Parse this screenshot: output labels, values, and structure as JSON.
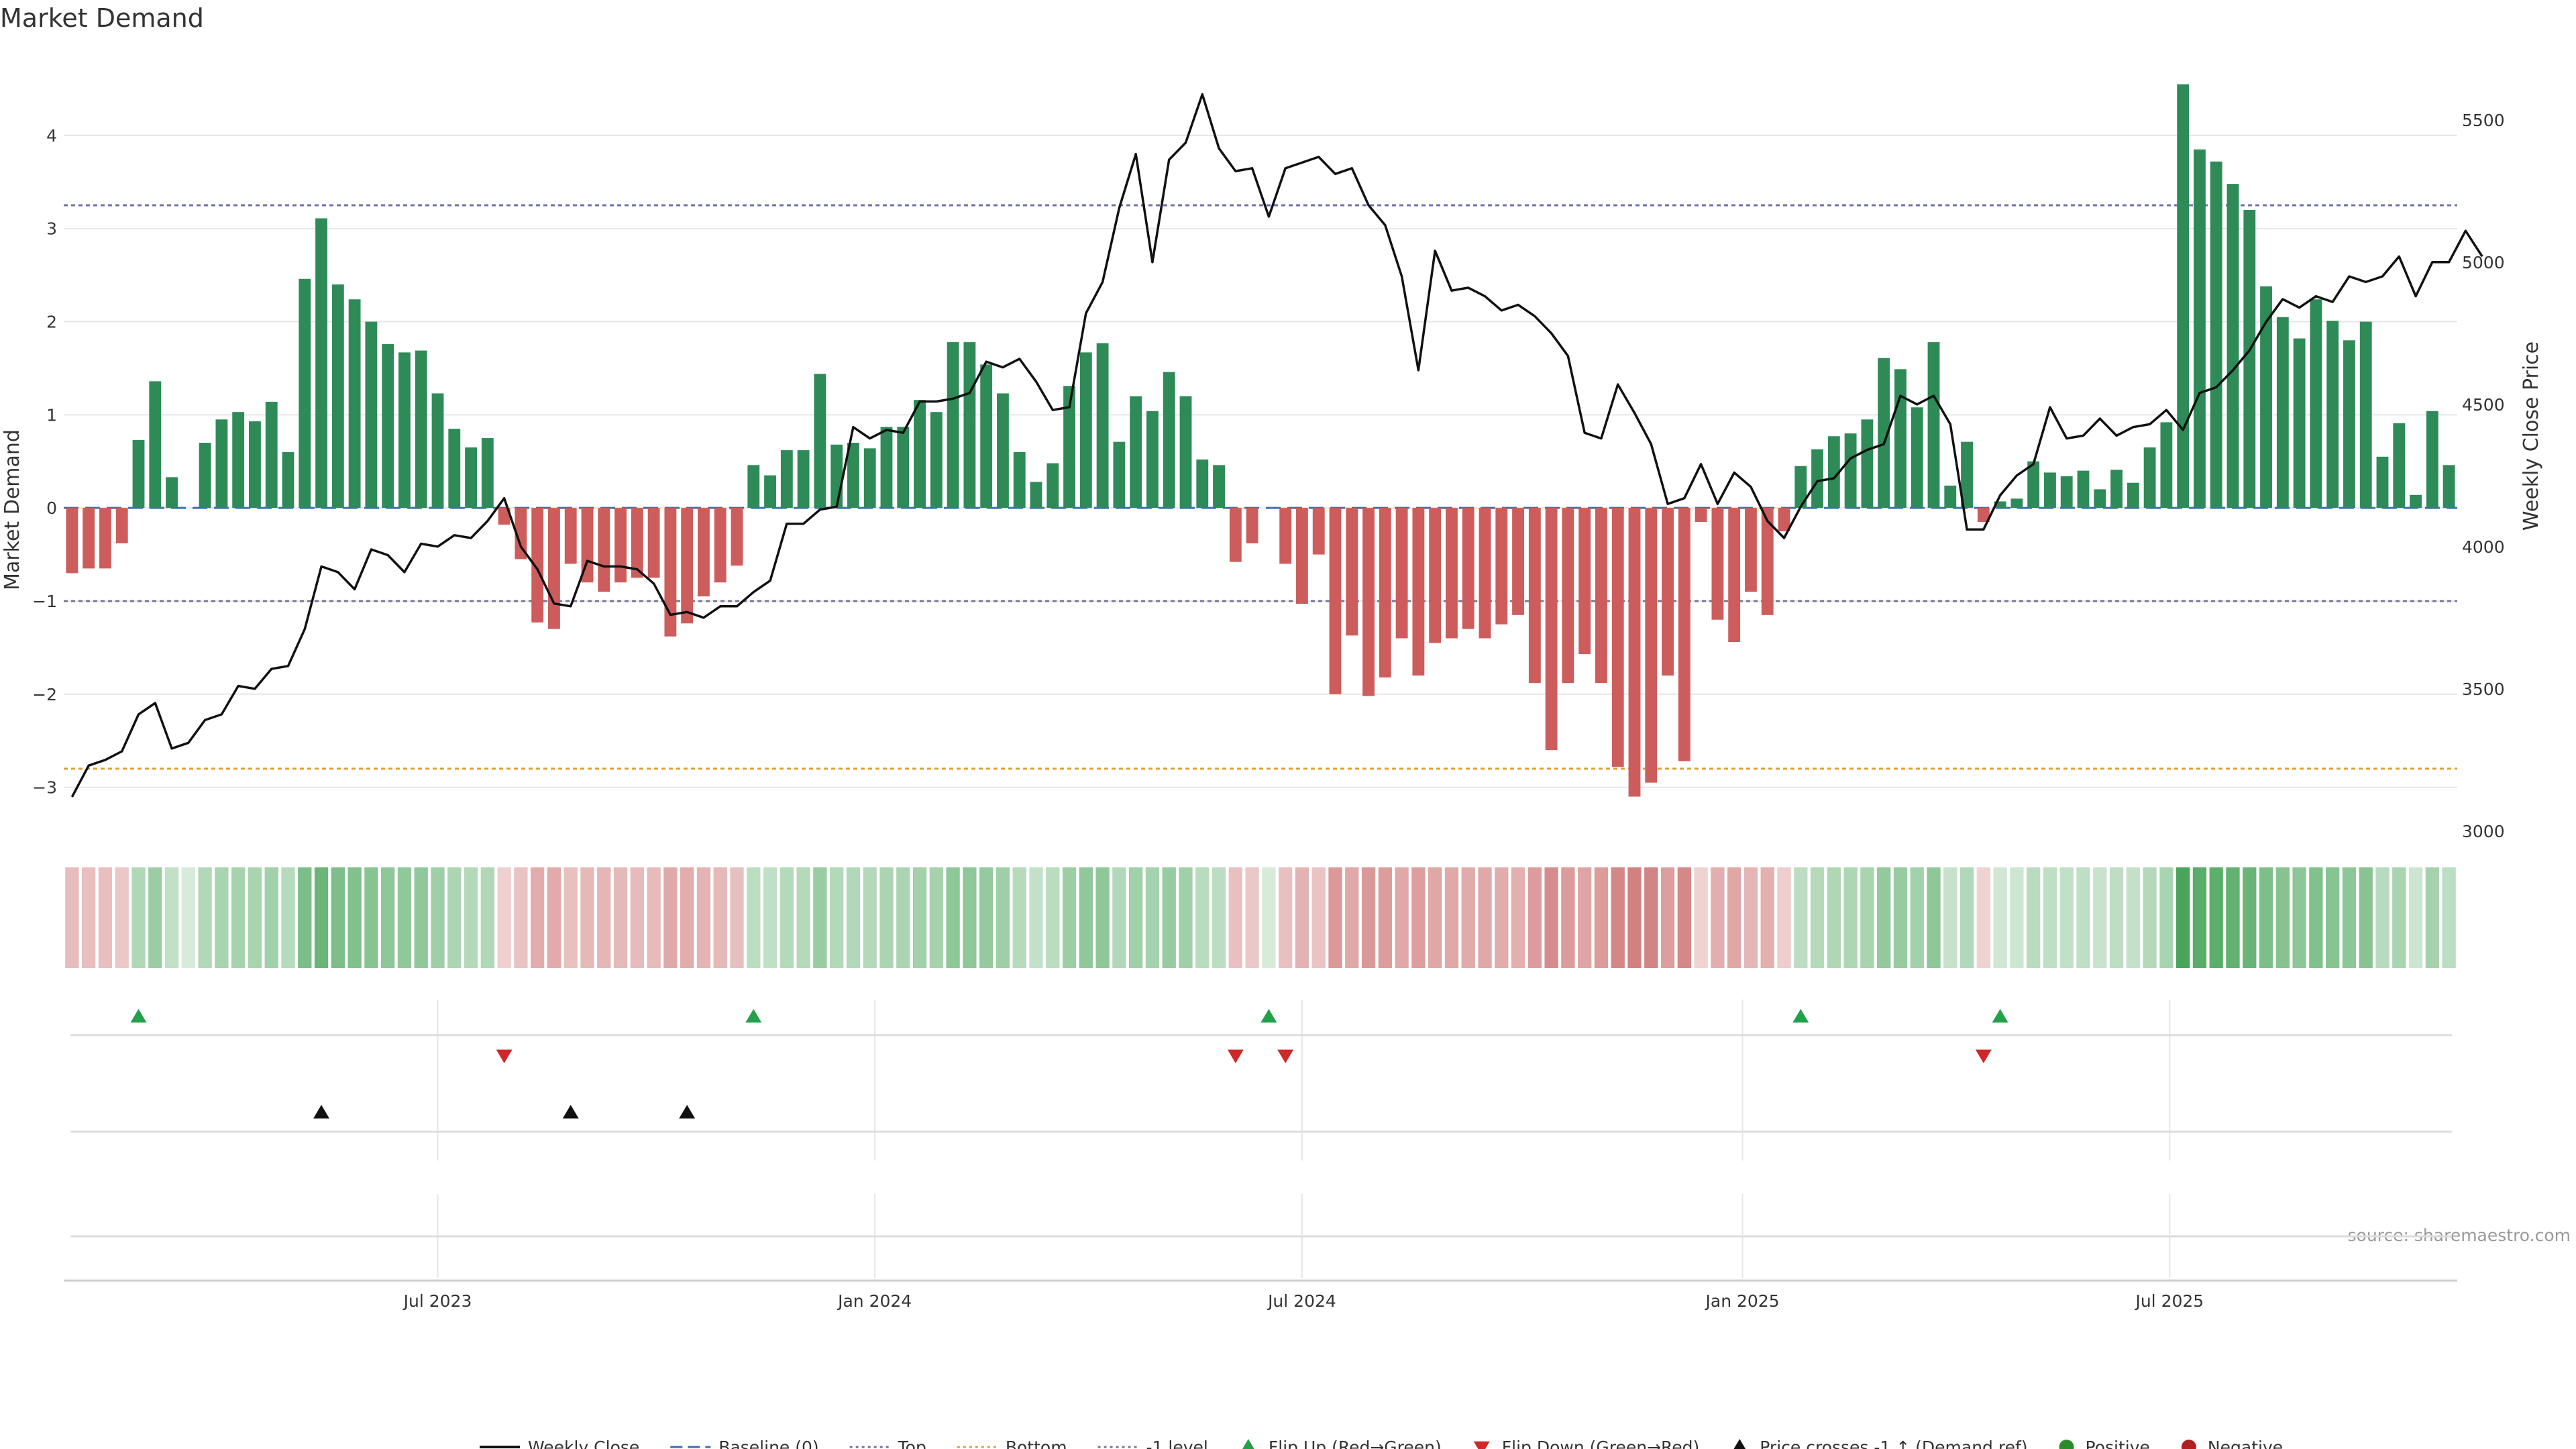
{
  "source_text": "source: sharemaestro.com",
  "chart_data": {
    "type": "bar",
    "title": "Market Demand",
    "xlabel": "",
    "ylabel": "Market Demand",
    "y2label": "Weekly Close Price",
    "ylim": [
      -3.5,
      4.9
    ],
    "y2lim": [
      2990,
      5740
    ],
    "yticks": [
      -3,
      -2,
      -1,
      0,
      1,
      2,
      3,
      4
    ],
    "y2ticks": [
      3000,
      3500,
      4000,
      4500,
      5000,
      5500
    ],
    "xticks": [
      "Jul 2023",
      "Jan 2024",
      "Jul 2024",
      "Jan 2025",
      "Jul 2025"
    ],
    "xtick_index": [
      22,
      48.3,
      74,
      100.5,
      126.2
    ],
    "reference_lines": [
      {
        "name": "Baseline (0)",
        "value": 0,
        "color": "#3b6fb6"
      },
      {
        "name": "Top",
        "value": 3.25,
        "color": "#7070b0"
      },
      {
        "name": "Bottom",
        "value": -2.8,
        "color": "#e0a030"
      },
      {
        "name": "-1 level",
        "value": -1,
        "color": "#777799"
      }
    ],
    "demand": [
      -0.7,
      -0.65,
      -0.65,
      -0.38,
      0.73,
      1.36,
      0.33,
      0,
      0.7,
      0.95,
      1.03,
      0.93,
      1.14,
      0.6,
      2.46,
      3.11,
      2.4,
      2.24,
      2.0,
      1.76,
      1.67,
      1.69,
      1.23,
      0.85,
      0.65,
      0.75,
      -0.18,
      -0.55,
      -1.23,
      -1.3,
      -0.6,
      -0.8,
      -0.9,
      -0.8,
      -0.75,
      -0.75,
      -1.38,
      -1.24,
      -0.95,
      -0.8,
      -0.62,
      0.46,
      0.35,
      0.62,
      0.62,
      1.44,
      0.68,
      0.7,
      0.64,
      0.87,
      0.87,
      1.16,
      1.03,
      1.78,
      1.78,
      1.54,
      1.23,
      0.6,
      0.28,
      0.48,
      1.31,
      1.67,
      1.77,
      0.71,
      1.2,
      1.04,
      1.46,
      1.2,
      0.52,
      0.46,
      -0.58,
      -0.38,
      0,
      -0.6,
      -1.03,
      -0.5,
      -2.0,
      -1.37,
      -2.02,
      -1.82,
      -1.4,
      -1.8,
      -1.45,
      -1.4,
      -1.3,
      -1.4,
      -1.25,
      -1.15,
      -1.88,
      -2.6,
      -1.88,
      -1.57,
      -1.88,
      -2.78,
      -3.1,
      -2.95,
      -1.8,
      -2.72,
      -0.15,
      -1.2,
      -1.44,
      -0.9,
      -1.15,
      -0.25,
      0.45,
      0.63,
      0.77,
      0.8,
      0.95,
      1.61,
      1.49,
      1.08,
      1.78,
      0.24,
      0.71,
      -0.15,
      0.07,
      0.1,
      0.5,
      0.38,
      0.34,
      0.4,
      0.2,
      0.41,
      0.27,
      0.65,
      0.92,
      4.55,
      3.85,
      3.72,
      3.48,
      3.2,
      2.38,
      2.05,
      1.82,
      2.24,
      2.01,
      1.8,
      2.0,
      0.55,
      0.91,
      0.14,
      1.04,
      0.46
    ],
    "price": [
      3120,
      3230,
      3250,
      3280,
      3410,
      3450,
      3290,
      3310,
      3390,
      3410,
      3510,
      3500,
      3570,
      3580,
      3710,
      3930,
      3910,
      3850,
      3990,
      3970,
      3910,
      4010,
      4000,
      4040,
      4030,
      4090,
      4170,
      4000,
      3920,
      3800,
      3790,
      3950,
      3930,
      3930,
      3920,
      3870,
      3760,
      3770,
      3750,
      3790,
      3790,
      3840,
      3880,
      4080,
      4080,
      4130,
      4140,
      4420,
      4380,
      4410,
      4400,
      4510,
      4510,
      4520,
      4540,
      4650,
      4630,
      4660,
      4580,
      4480,
      4490,
      4820,
      4930,
      5190,
      5380,
      5000,
      5360,
      5420,
      5590,
      5400,
      5320,
      5330,
      5160,
      5330,
      5350,
      5370,
      5310,
      5330,
      5200,
      5130,
      4950,
      4620,
      5040,
      4900,
      4910,
      4880,
      4830,
      4850,
      4810,
      4750,
      4670,
      4400,
      4380,
      4570,
      4470,
      4360,
      4150,
      4170,
      4290,
      4150,
      4260,
      4210,
      4090,
      4030,
      4140,
      4230,
      4240,
      4310,
      4340,
      4360,
      4530,
      4500,
      4530,
      4430,
      4060,
      4060,
      4180,
      4250,
      4290,
      4490,
      4380,
      4390,
      4450,
      4390,
      4420,
      4430,
      4480,
      4410,
      4540,
      4560,
      4620,
      4690,
      4790,
      4870,
      4840,
      4880,
      4860,
      4950,
      4930,
      4950,
      5020,
      4880,
      5000,
      5000,
      5110,
      5020
    ],
    "strip": {
      "name": "Demand intensity",
      "positive_color": "#4aa55a",
      "negative_color": "#c86464"
    },
    "events": {
      "flip_up": [
        4,
        41,
        72,
        104,
        116
      ],
      "flip_down": [
        26,
        70,
        73,
        115
      ],
      "price_cross": [
        15,
        30,
        37
      ]
    },
    "legend": [
      {
        "label": "Weekly Close",
        "kind": "line",
        "color": "#111111"
      },
      {
        "label": "Baseline (0)",
        "kind": "dash",
        "color": "#3b6fb6"
      },
      {
        "label": "Top",
        "kind": "dot",
        "color": "#7070b0"
      },
      {
        "label": "Bottom",
        "kind": "dot",
        "color": "#e0a030"
      },
      {
        "label": "-1 level",
        "kind": "dot",
        "color": "#777799"
      },
      {
        "label": "Flip Up (Red→Green)",
        "kind": "tri-up",
        "color": "#22a04a"
      },
      {
        "label": "Flip Down (Green→Red)",
        "kind": "tri-down",
        "color": "#d02828"
      },
      {
        "label": "Price crosses -1 ↑ (Demand ref)",
        "kind": "tri-up",
        "color": "#111111"
      },
      {
        "label": "Positive",
        "kind": "circle",
        "color": "#2a8c2a"
      },
      {
        "label": "Negative",
        "kind": "circle",
        "color": "#b02020"
      }
    ],
    "colors": {
      "positive_bar": "#2e8b57",
      "negative_bar": "#cd5c5c",
      "price_line": "#111111",
      "grid": "#e6e6e6"
    }
  }
}
